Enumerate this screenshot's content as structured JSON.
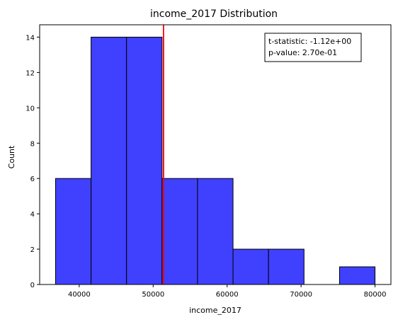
{
  "chart_data": {
    "type": "bar",
    "title": "income_2017 Distribution",
    "xlabel": "income_2017",
    "ylabel": "Count",
    "bins": [
      {
        "x0": 36800,
        "x1": 41600,
        "count": 6
      },
      {
        "x0": 41600,
        "x1": 46400,
        "count": 14
      },
      {
        "x0": 46400,
        "x1": 51200,
        "count": 14
      },
      {
        "x0": 51200,
        "x1": 56000,
        "count": 6
      },
      {
        "x0": 56000,
        "x1": 60800,
        "count": 6
      },
      {
        "x0": 60800,
        "x1": 65600,
        "count": 2
      },
      {
        "x0": 65600,
        "x1": 70400,
        "count": 2
      },
      {
        "x0": 70400,
        "x1": 75200,
        "count": 0
      },
      {
        "x0": 75200,
        "x1": 80000,
        "count": 1
      }
    ],
    "xlim": [
      34650,
      82150
    ],
    "ylim": [
      0,
      14.7
    ],
    "xticks": [
      40000,
      50000,
      60000,
      70000,
      80000
    ],
    "yticks": [
      0,
      2,
      4,
      6,
      8,
      10,
      12,
      14
    ],
    "bar_color": "#4040ff",
    "vline": {
      "x": 51400,
      "color": "#ff0000"
    },
    "annotation": {
      "line1": "t-statistic: -1.12e+00",
      "line2": "p-value:  2.70e-01",
      "position": "top-right"
    },
    "grid": false
  }
}
